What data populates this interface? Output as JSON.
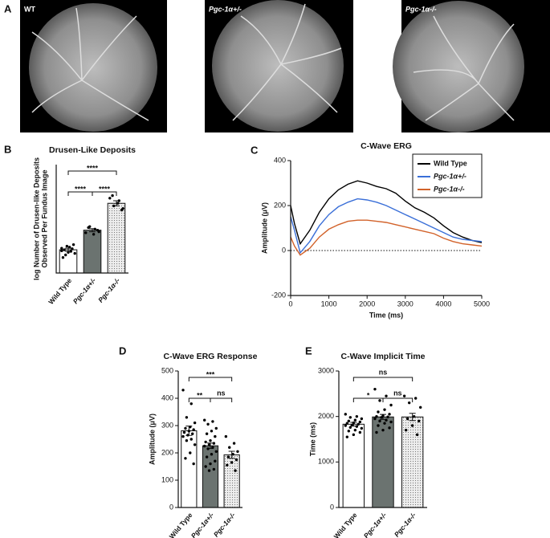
{
  "fundus": {
    "panel": "A",
    "labels": [
      "WT",
      "Pgc-1α+/-",
      "Pgc-1α-/-"
    ]
  },
  "chart_data": [
    {
      "type": "bar",
      "panel": "B",
      "title": "Drusen-Like Deposits",
      "ylabel": [
        "log Number of Drusen-like Deposits",
        "Observed Per Fundus Image"
      ],
      "categories": [
        "Wild Type",
        "Pgc-1α+/-",
        "Pgc-1α-/-"
      ],
      "values": [
        0.95,
        1.33,
        1.85
      ],
      "errors": [
        0.03,
        0.03,
        0.05
      ],
      "points": [
        [
          0.98,
          0.92,
          0.85,
          0.88,
          1.0,
          0.95,
          1.05,
          0.9,
          0.8,
          0.97,
          1.02,
          0.93
        ],
        [
          1.28,
          1.35,
          1.4,
          1.3,
          1.25,
          1.38,
          1.33
        ],
        [
          1.95,
          1.9,
          1.8,
          1.75,
          1.85,
          2.0,
          1.72
        ]
      ],
      "colors": [
        "#ffffff",
        "#6b7370",
        "#d9d9d9"
      ],
      "ylim": [
        0.5,
        2.6
      ],
      "significance": [
        "****",
        "****",
        "****"
      ]
    },
    {
      "type": "line",
      "panel": "C",
      "title": "C-Wave ERG",
      "xlabel": "Time (ms)",
      "ylabel": "Amplitude (μV)",
      "x": [
        0,
        100,
        250,
        500,
        750,
        1000,
        1250,
        1500,
        1750,
        2000,
        2250,
        2500,
        2750,
        3000,
        3250,
        3500,
        3750,
        4000,
        4250,
        4500,
        4750,
        5000
      ],
      "series": [
        {
          "name": "Wild Type",
          "color": "#000000",
          "values": [
            200,
            120,
            30,
            90,
            170,
            230,
            270,
            295,
            310,
            300,
            285,
            275,
            255,
            220,
            190,
            170,
            145,
            110,
            80,
            60,
            45,
            35
          ]
        },
        {
          "name": "Pgc-1α+/-",
          "color": "#3a6fd8",
          "values": [
            150,
            90,
            -10,
            40,
            110,
            160,
            195,
            215,
            230,
            225,
            215,
            200,
            180,
            160,
            140,
            120,
            100,
            80,
            60,
            50,
            45,
            40
          ]
        },
        {
          "name": "Pgc-1α-/-",
          "color": "#d2622a",
          "values": [
            60,
            20,
            -20,
            10,
            60,
            95,
            115,
            130,
            135,
            135,
            130,
            125,
            115,
            105,
            95,
            85,
            75,
            55,
            40,
            30,
            25,
            20
          ]
        }
      ],
      "xlim": [
        0,
        5000
      ],
      "xticks": [
        0,
        1000,
        2000,
        3000,
        4000,
        5000
      ],
      "ylim": [
        -200,
        400
      ],
      "yticks": [
        -200,
        0,
        200,
        400
      ]
    },
    {
      "type": "bar",
      "panel": "D",
      "title": "C-Wave ERG Response",
      "ylabel": "Amplitude (μV)",
      "categories": [
        "Wild Type",
        "Pgc-1α+/-",
        "Pgc-1α-/-"
      ],
      "values": [
        281,
        226,
        193
      ],
      "errors": [
        17,
        10,
        13
      ],
      "points": [
        [
          430,
          380,
          330,
          310,
          295,
          290,
          285,
          280,
          275,
          270,
          265,
          260,
          250,
          245,
          230,
          200,
          180,
          160
        ],
        [
          320,
          315,
          305,
          290,
          280,
          270,
          260,
          245,
          240,
          235,
          230,
          225,
          220,
          215,
          205,
          195,
          185,
          170,
          160,
          150,
          140,
          135
        ],
        [
          260,
          235,
          220,
          205,
          195,
          185,
          175,
          165,
          155,
          135
        ]
      ],
      "colors": [
        "#ffffff",
        "#6b7370",
        "#d9d9d9"
      ],
      "ylim": [
        0,
        500
      ],
      "yticks": [
        0,
        100,
        200,
        300,
        400,
        500
      ],
      "significance": [
        "***",
        "**",
        "ns"
      ]
    },
    {
      "type": "bar",
      "panel": "E",
      "title": "C-Wave Implicit Time",
      "ylabel": "Time (ms)",
      "categories": [
        "Wild Type",
        "Pgc-1α+/-",
        "Pgc-1α-/-"
      ],
      "values": [
        1830,
        1990,
        1990
      ],
      "errors": [
        40,
        55,
        80
      ],
      "points": [
        [
          2050,
          2000,
          1980,
          1950,
          1920,
          1900,
          1880,
          1860,
          1850,
          1830,
          1810,
          1800,
          1780,
          1760,
          1740,
          1700,
          1680,
          1650,
          1600,
          1550
        ],
        [
          2600,
          2450,
          2350,
          2250,
          2150,
          2100,
          2050,
          2020,
          2000,
          1990,
          1980,
          1950,
          1920,
          1900,
          1880,
          1850,
          1800,
          1750,
          1700,
          1650
        ],
        [
          2450,
          2400,
          2300,
          2200,
          2000,
          1950,
          1900,
          1800,
          1700,
          1600
        ]
      ],
      "colors": [
        "#ffffff",
        "#6b7370",
        "#d9d9d9"
      ],
      "ylim": [
        0,
        3000
      ],
      "yticks": [
        0,
        1000,
        2000,
        3000
      ],
      "significance": [
        "ns",
        "*",
        "ns"
      ]
    }
  ]
}
